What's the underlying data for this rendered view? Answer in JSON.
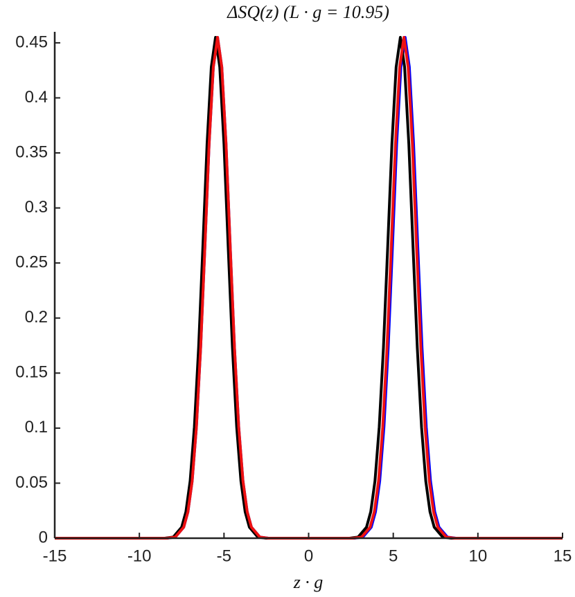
{
  "chart_data": {
    "type": "line",
    "title": "ΔSQ(z) (L · g = 10.95)",
    "x_label": "z · g",
    "xlim": [
      -15,
      15
    ],
    "xticks": [
      -15,
      -10,
      -5,
      0,
      5,
      10,
      15
    ],
    "ylim": [
      0,
      0.46
    ],
    "yticks": [
      0,
      0.05,
      0.1,
      0.15,
      0.2,
      0.25,
      0.3,
      0.35,
      0.4,
      0.45
    ],
    "series": [
      {
        "color": "#0000ff",
        "x": [
          -15,
          -8.38,
          -7.88,
          -7.38,
          -7.13,
          -6.88,
          -6.63,
          -6.38,
          -6.13,
          -5.88,
          -5.63,
          -5.38,
          -5.13,
          -4.88,
          -4.63,
          -4.38,
          -4.13,
          -3.88,
          -3.63,
          -3.38,
          -2.88,
          -2.38,
          2.7,
          3.2,
          3.7,
          3.95,
          4.2,
          4.45,
          4.7,
          4.95,
          5.2,
          5.45,
          5.7,
          5.95,
          6.2,
          6.45,
          6.7,
          6.95,
          7.2,
          7.45,
          7.7,
          8.2,
          8.7,
          15
        ],
        "values": [
          0,
          0,
          0.001,
          0.01,
          0.024,
          0.052,
          0.101,
          0.173,
          0.264,
          0.358,
          0.428,
          0.455,
          0.428,
          0.358,
          0.264,
          0.173,
          0.101,
          0.052,
          0.024,
          0.01,
          0.001,
          0,
          0,
          0.001,
          0.01,
          0.024,
          0.052,
          0.101,
          0.173,
          0.264,
          0.358,
          0.428,
          0.455,
          0.428,
          0.358,
          0.264,
          0.173,
          0.101,
          0.052,
          0.024,
          0.01,
          0.001,
          0,
          0
        ]
      },
      {
        "color": "#000000",
        "x": [
          -15,
          -8.5,
          -8,
          -7.5,
          -7.25,
          -7,
          -6.75,
          -6.5,
          -6.25,
          -6,
          -5.75,
          -5.5,
          -5.25,
          -5,
          -4.75,
          -4.5,
          -4.25,
          -4,
          -3.75,
          -3.5,
          -3,
          -2.5,
          2.42,
          2.92,
          3.42,
          3.67,
          3.92,
          4.17,
          4.42,
          4.67,
          4.92,
          5.17,
          5.42,
          5.67,
          5.92,
          6.17,
          6.42,
          6.67,
          6.92,
          7.17,
          7.42,
          7.92,
          8.42,
          15
        ],
        "values": [
          0,
          0,
          0.001,
          0.01,
          0.024,
          0.052,
          0.101,
          0.173,
          0.264,
          0.358,
          0.428,
          0.455,
          0.428,
          0.358,
          0.264,
          0.173,
          0.101,
          0.052,
          0.024,
          0.01,
          0.001,
          0,
          0,
          0.001,
          0.01,
          0.024,
          0.052,
          0.101,
          0.173,
          0.264,
          0.358,
          0.428,
          0.455,
          0.428,
          0.358,
          0.264,
          0.173,
          0.101,
          0.052,
          0.024,
          0.01,
          0.001,
          0,
          0
        ]
      },
      {
        "color": "#ee1111",
        "x": [
          -15,
          -8.38,
          -7.88,
          -7.38,
          -7.13,
          -6.88,
          -6.63,
          -6.38,
          -6.13,
          -5.88,
          -5.63,
          -5.38,
          -5.13,
          -4.88,
          -4.63,
          -4.38,
          -4.13,
          -3.88,
          -3.63,
          -3.38,
          -2.88,
          -2.38,
          2.63,
          3.13,
          3.63,
          3.88,
          4.13,
          4.38,
          4.63,
          4.88,
          5.13,
          5.38,
          5.63,
          5.88,
          6.13,
          6.38,
          6.63,
          6.88,
          7.13,
          7.38,
          7.63,
          8.13,
          8.63,
          15
        ],
        "values": [
          0,
          0,
          0.001,
          0.01,
          0.024,
          0.052,
          0.101,
          0.173,
          0.264,
          0.358,
          0.428,
          0.455,
          0.428,
          0.358,
          0.264,
          0.173,
          0.101,
          0.052,
          0.024,
          0.01,
          0.001,
          0,
          0,
          0.001,
          0.01,
          0.024,
          0.052,
          0.101,
          0.173,
          0.264,
          0.358,
          0.428,
          0.455,
          0.428,
          0.358,
          0.264,
          0.173,
          0.101,
          0.052,
          0.024,
          0.01,
          0.001,
          0,
          0
        ]
      }
    ]
  }
}
